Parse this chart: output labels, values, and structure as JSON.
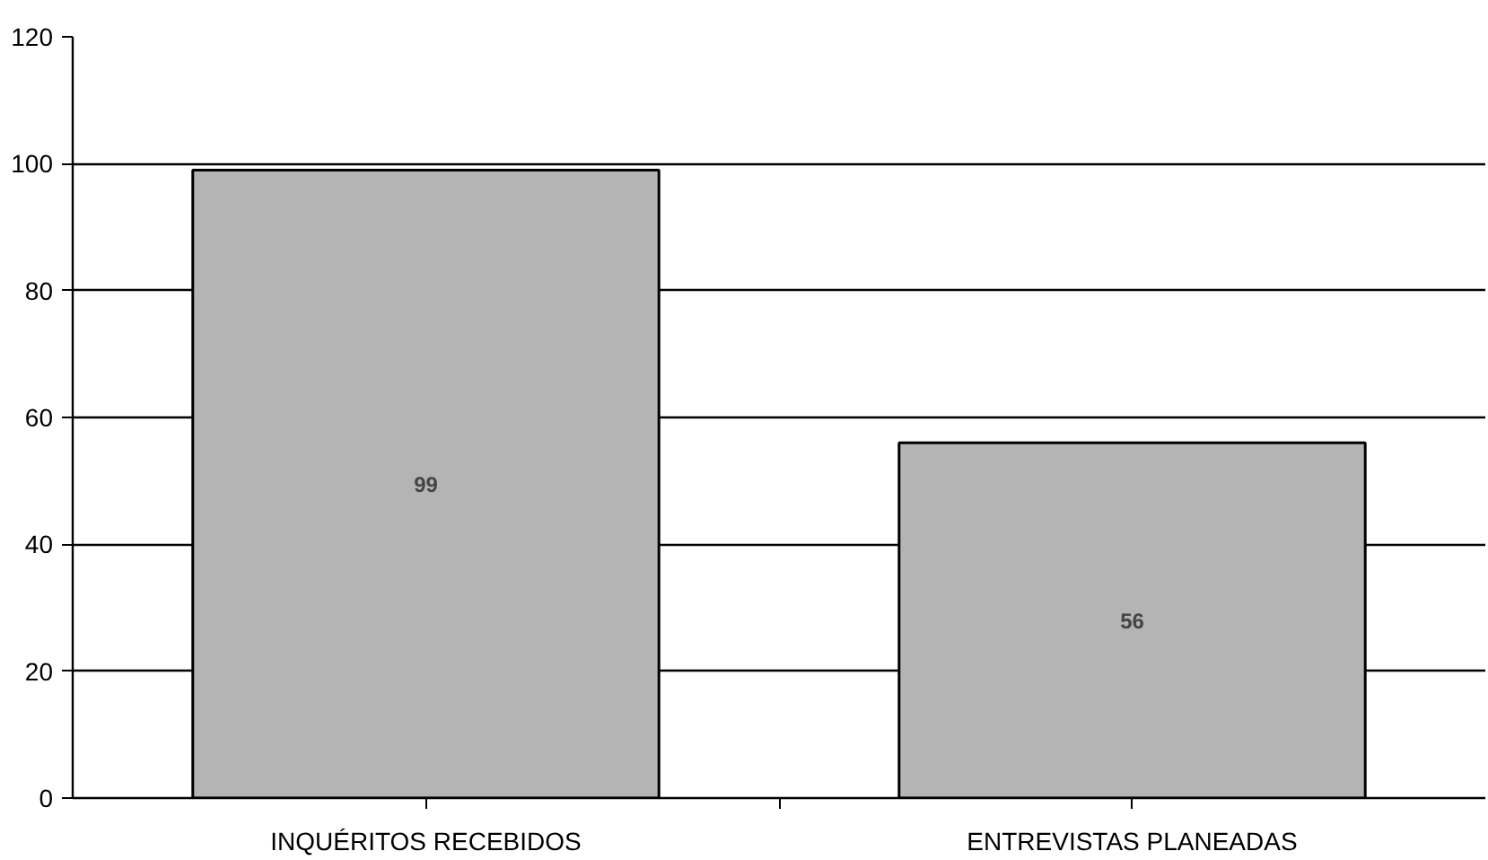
{
  "chart_data": {
    "type": "bar",
    "categories": [
      "INQUÉRITOS RECEBIDOS",
      "ENTREVISTAS PLANEADAS"
    ],
    "values": [
      99,
      56
    ],
    "color": "#b4b4b4",
    "ylim": [
      0,
      120
    ],
    "yticks": [
      0,
      20,
      40,
      60,
      80,
      100,
      120
    ],
    "grid": "y",
    "data_labels": true
  }
}
